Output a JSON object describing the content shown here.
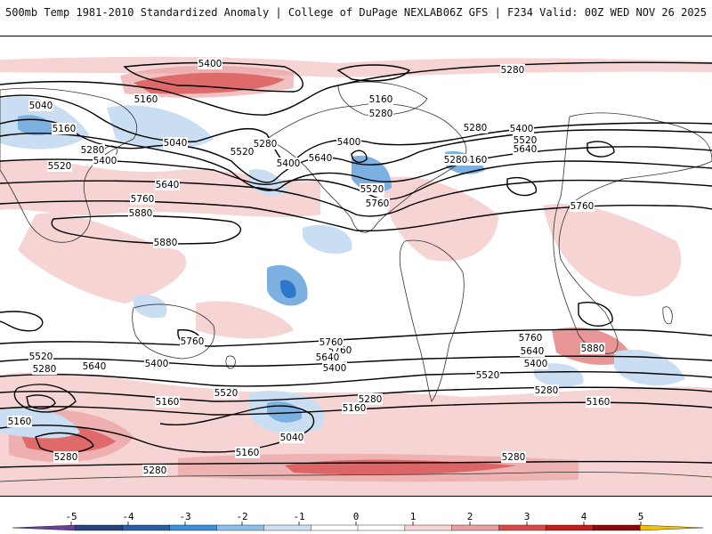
{
  "header": {
    "title_left": "500mb Temp 1981-2010 Standardized Anomaly | College of DuPage NEXLAB",
    "title_right": "06Z GFS | F234 Valid: 00Z WED NOV 26 2025"
  },
  "contour_labels": [
    "5400",
    "5280",
    "5040",
    "5160",
    "5160",
    "5040",
    "5280",
    "5400",
    "5520",
    "5640",
    "5760",
    "5880",
    "5880",
    "5160",
    "5280",
    "5160",
    "5400",
    "5520",
    "5280",
    "5640",
    "5760",
    "5520",
    "5640",
    "5400",
    "5280",
    "5280",
    "5400",
    "5520",
    "5640",
    "5760",
    "5760",
    "5880",
    "5760",
    "5640",
    "5400",
    "5280",
    "5160",
    "5760",
    "5520",
    "5280",
    "5640",
    "5400",
    "5520",
    "5280",
    "5160",
    "5040",
    "5160",
    "5160",
    "5280",
    "5280",
    "5760",
    "5640",
    "5400",
    "5520",
    "5280",
    "5160"
  ],
  "colors": {
    "positive_light": "#f6d4d4",
    "positive_mid": "#e89696",
    "positive_strong": "#d12a2a",
    "negative_light": "#c9def2",
    "negative_mid": "#7bb0e0",
    "negative_strong": "#2f78c9",
    "land_lines": "#333333",
    "contours": "#000000"
  },
  "colorbar": {
    "ticks": [
      "-5",
      "-4",
      "-3",
      "-2",
      "-1",
      "0",
      "1",
      "2",
      "3",
      "4",
      "5"
    ],
    "colors": [
      "#6b3fa0",
      "#26457a",
      "#2d5da6",
      "#3d8fd6",
      "#8fbfe8",
      "#cfe2f3",
      "#ffffff",
      "#ffffff",
      "#f7d6d6",
      "#e8a0a0",
      "#d84a4a",
      "#c41d1d",
      "#8e0a0a",
      "#f3c300"
    ]
  }
}
